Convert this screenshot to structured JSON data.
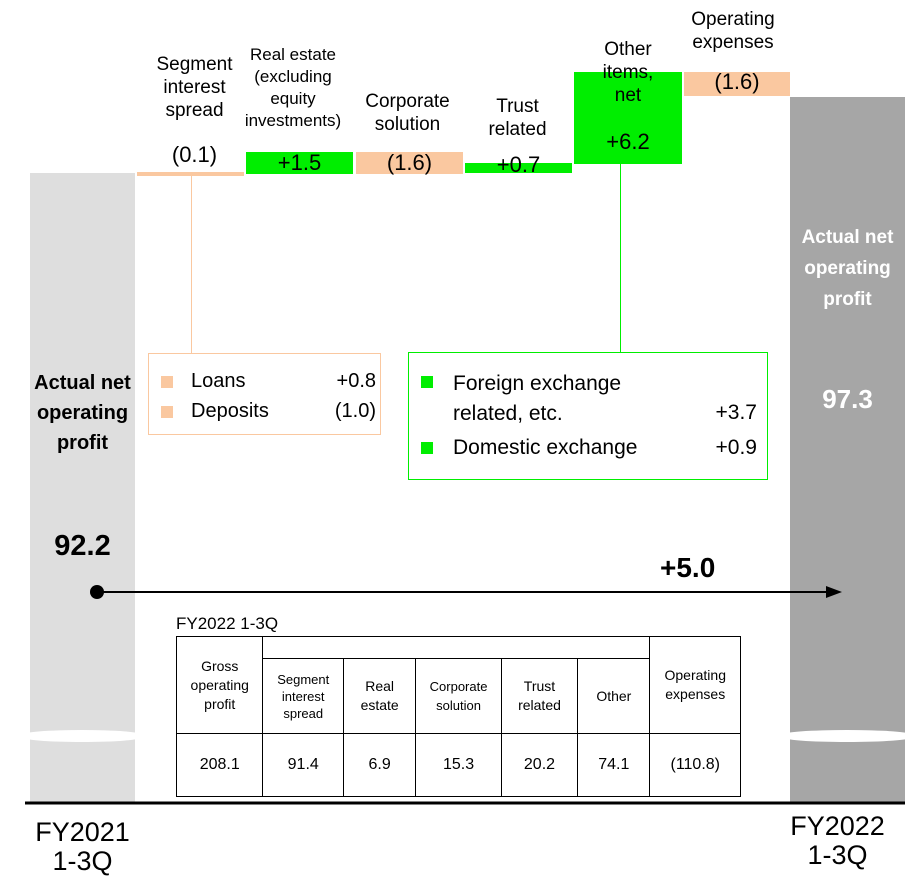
{
  "colors": {
    "increase": "#00ee00",
    "decrease": "#fac8a0",
    "start": "#dedede",
    "end": "#a6a6a6"
  },
  "start": {
    "label": "Actual net operating profit",
    "value": "92.2",
    "period": "FY2021\n1-3Q"
  },
  "end": {
    "label": "Actual net operating profit",
    "value": "97.3",
    "period": "FY2022\n1-3Q"
  },
  "total_change": "+5.0",
  "chart_data": {
    "type": "bar",
    "subtype": "waterfall",
    "categories": [
      "Actual net operating profit FY2021 1-3Q",
      "Segment interest spread",
      "Real estate (excluding equity investments)",
      "Corporate solution",
      "Trust related",
      "Other items, net",
      "Operating expenses",
      "Actual net operating profit FY2022 1-3Q"
    ],
    "values": [
      92.2,
      -0.1,
      1.5,
      -1.6,
      0.7,
      6.2,
      -1.6,
      97.3
    ],
    "value_labels": [
      "92.2",
      "(0.1)",
      "+1.5",
      "(1.6)",
      "+0.7",
      "+6.2",
      "(1.6)",
      "97.3"
    ],
    "step_labels": [
      "Segment\ninterest\nspread",
      "Real estate\n(excluding\nequity\ninvestments)",
      "Corporate\nsolution",
      "Trust\nrelated",
      "Other\nitems,\nnet",
      "Operating\nexpenses"
    ],
    "total_change": 5.0,
    "axis_break": true
  },
  "callouts": {
    "interest": [
      {
        "label": "Loans",
        "value": "+0.8"
      },
      {
        "label": "Deposits",
        "value": "(1.0)"
      }
    ],
    "other": [
      {
        "label": "Foreign exchange\nrelated, etc.",
        "value": "+3.7"
      },
      {
        "label": "Domestic exchange",
        "value": "+0.9"
      }
    ]
  },
  "table": {
    "title": "FY2022 1-3Q",
    "gross_header": "Gross\noperating\nprofit",
    "sub_headers": [
      "Segment\ninterest\nspread",
      "Real\nestate",
      "Corporate\nsolution",
      "Trust\nrelated",
      "Other"
    ],
    "opex_header": "Operating\nexpenses",
    "values": [
      "208.1",
      "91.4",
      "6.9",
      "15.3",
      "20.2",
      "74.1",
      "(110.8)"
    ]
  }
}
